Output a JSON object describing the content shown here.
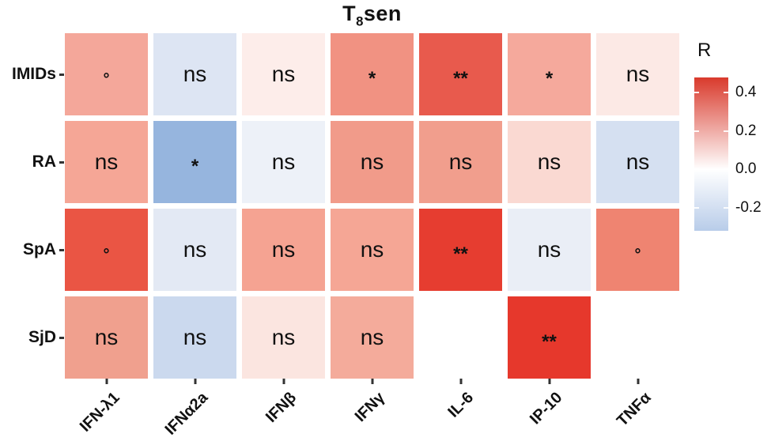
{
  "figure": {
    "title": {
      "prefix": "T",
      "sub": "8",
      "suffix": "sen"
    }
  },
  "chart_data": {
    "type": "heatmap",
    "title": "T8sen",
    "rows": [
      "IMIDs",
      "RA",
      "SpA",
      "SjD"
    ],
    "columns": [
      "IFN-λ1",
      "IFNα2a",
      "IFNβ",
      "IFNγ",
      "IL-6",
      "IP-10",
      "TNFα"
    ],
    "legend": {
      "title": "R",
      "position": "right",
      "ticks": [
        0.4,
        0.2,
        0.0,
        -0.2
      ],
      "range": [
        -0.32,
        0.48
      ],
      "gradient": {
        "top": "#d93a2c",
        "zero": "#ffffff",
        "bottom": "#b8cce9"
      }
    },
    "cells": [
      [
        {
          "sig": "°",
          "r": 0.22,
          "color": "#f4a79a"
        },
        {
          "sig": "ns",
          "r": -0.1,
          "color": "#dde5f3"
        },
        {
          "sig": "ns",
          "r": 0.04,
          "color": "#fdedea"
        },
        {
          "sig": "*",
          "r": 0.27,
          "color": "#f19282"
        },
        {
          "sig": "**",
          "r": 0.41,
          "color": "#e85a4d"
        },
        {
          "sig": "*",
          "r": 0.22,
          "color": "#f5a99c"
        },
        {
          "sig": "ns",
          "r": 0.05,
          "color": "#fce9e5"
        }
      ],
      [
        {
          "sig": "ns",
          "r": 0.23,
          "color": "#f5a696"
        },
        {
          "sig": "*",
          "r": -0.3,
          "color": "#96b5de"
        },
        {
          "sig": "ns",
          "r": -0.03,
          "color": "#edf1f8"
        },
        {
          "sig": "ns",
          "r": 0.25,
          "color": "#f19b8a"
        },
        {
          "sig": "ns",
          "r": 0.25,
          "color": "#f19e8d"
        },
        {
          "sig": "ns",
          "r": 0.09,
          "color": "#fad9d2"
        },
        {
          "sig": "ns",
          "r": -0.12,
          "color": "#d5e0f1"
        }
      ],
      [
        {
          "sig": "°",
          "r": 0.42,
          "color": "#ea5544"
        },
        {
          "sig": "ns",
          "r": -0.07,
          "color": "#e3e9f4"
        },
        {
          "sig": "ns",
          "r": 0.24,
          "color": "#f5a392"
        },
        {
          "sig": "ns",
          "r": 0.23,
          "color": "#f5a695"
        },
        {
          "sig": "**",
          "r": 0.47,
          "color": "#e63d30"
        },
        {
          "sig": "ns",
          "r": -0.05,
          "color": "#eaeef6"
        },
        {
          "sig": "°",
          "r": 0.31,
          "color": "#ef8471"
        }
      ],
      [
        {
          "sig": "ns",
          "r": 0.24,
          "color": "#f0a08e"
        },
        {
          "sig": "ns",
          "r": -0.16,
          "color": "#cbd9ee"
        },
        {
          "sig": "ns",
          "r": 0.06,
          "color": "#fbe5e0"
        },
        {
          "sig": "ns",
          "r": 0.21,
          "color": "#f4ab9b"
        },
        null,
        {
          "sig": "**",
          "r": 0.48,
          "color": "#e6382c"
        },
        null
      ]
    ]
  }
}
